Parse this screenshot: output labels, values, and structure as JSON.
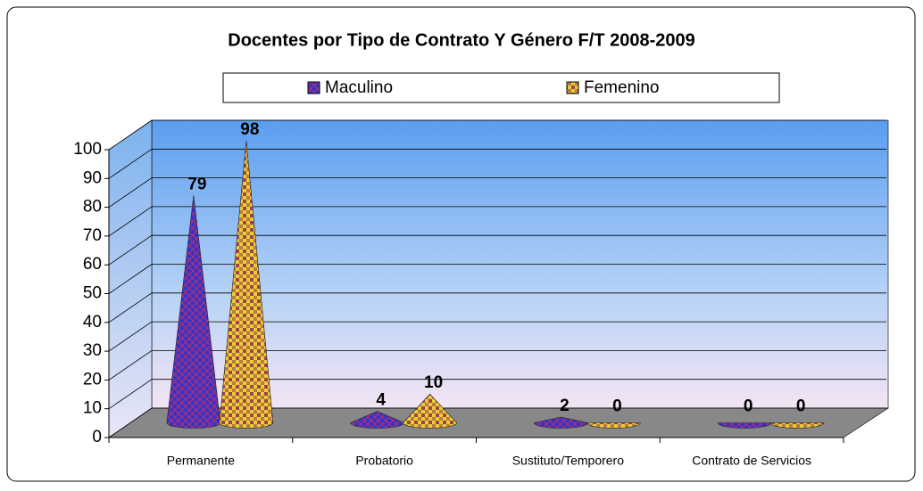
{
  "chart_data": {
    "type": "cone3d",
    "title": "Docentes por Tipo de Contrato Y Género F/T 2008-2009",
    "categories": [
      "Permanente",
      "Probatorio",
      "Sustituto/Temporero",
      "Contrato de Servicios"
    ],
    "series": [
      {
        "name": "Maculino",
        "color": "#3333cc",
        "values": [
          79,
          4,
          2,
          0
        ]
      },
      {
        "name": "Femenino",
        "color": "#e6c020",
        "values": [
          98,
          10,
          0,
          0
        ]
      }
    ],
    "ylim": [
      0,
      100
    ],
    "yticks": [
      0,
      10,
      20,
      30,
      40,
      50,
      60,
      70,
      80,
      90,
      100
    ],
    "grid": true,
    "legend": "top"
  }
}
